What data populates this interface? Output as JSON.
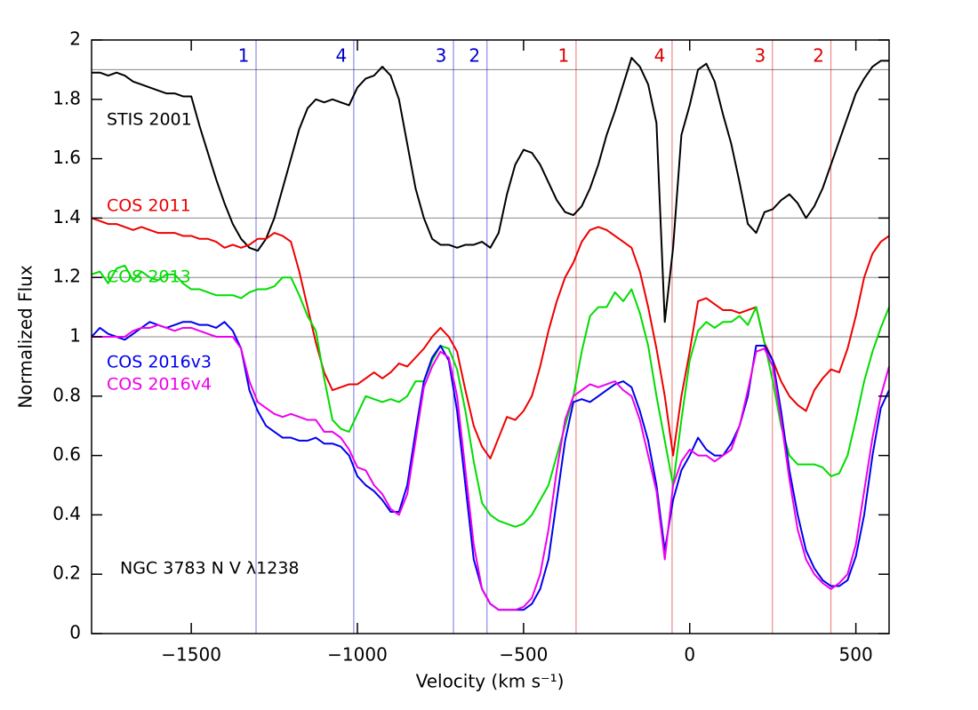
{
  "chart_data": {
    "type": "line",
    "annotation": "NGC 3783 N V λ1238",
    "xlabel": "Velocity (km s⁻¹)",
    "ylabel": "Normalized Flux",
    "xlim": [
      -1800,
      600
    ],
    "ylim": [
      0,
      2
    ],
    "xticks": [
      {
        "value": -1500,
        "label": "−1500"
      },
      {
        "value": -1000,
        "label": "−1000"
      },
      {
        "value": -500,
        "label": "−500"
      },
      0,
      500
    ],
    "yticks": [
      0,
      0.2,
      0.4,
      0.6,
      0.8,
      1,
      1.2,
      1.4,
      1.6,
      1.8,
      2
    ],
    "hlines": [
      1.9,
      1.4,
      1.2,
      1.0
    ],
    "components": [
      {
        "label": "1",
        "velocity": -1305,
        "color": "#0000cc"
      },
      {
        "label": "4",
        "velocity": -1011,
        "color": "#0000cc"
      },
      {
        "label": "3",
        "velocity": -711,
        "color": "#0000cc"
      },
      {
        "label": "2",
        "velocity": -610,
        "color": "#0000cc"
      },
      {
        "label": "1",
        "velocity": -342,
        "color": "#dd0000"
      },
      {
        "label": "4",
        "velocity": -53,
        "color": "#dd0000"
      },
      {
        "label": "3",
        "velocity": 249,
        "color": "#dd0000"
      },
      {
        "label": "2",
        "velocity": 425,
        "color": "#dd0000"
      }
    ],
    "x": [
      -1800,
      -1775,
      -1750,
      -1725,
      -1700,
      -1675,
      -1650,
      -1625,
      -1600,
      -1575,
      -1550,
      -1525,
      -1500,
      -1475,
      -1450,
      -1425,
      -1400,
      -1375,
      -1350,
      -1325,
      -1300,
      -1275,
      -1250,
      -1225,
      -1200,
      -1175,
      -1150,
      -1125,
      -1100,
      -1075,
      -1050,
      -1025,
      -1000,
      -975,
      -950,
      -925,
      -900,
      -875,
      -850,
      -825,
      -800,
      -775,
      -750,
      -725,
      -700,
      -675,
      -650,
      -625,
      -600,
      -575,
      -550,
      -525,
      -500,
      -475,
      -450,
      -425,
      -400,
      -375,
      -350,
      -325,
      -300,
      -275,
      -250,
      -225,
      -200,
      -175,
      -150,
      -125,
      -100,
      -75,
      -50,
      -25,
      0,
      25,
      50,
      75,
      100,
      125,
      150,
      175,
      200,
      225,
      250,
      275,
      300,
      325,
      350,
      375,
      400,
      425,
      450,
      475,
      500,
      525,
      550,
      575,
      600
    ],
    "series": [
      {
        "name": "STIS 2001",
        "color": "#000000",
        "values": [
          1.89,
          1.89,
          1.88,
          1.89,
          1.88,
          1.86,
          1.85,
          1.84,
          1.83,
          1.82,
          1.82,
          1.81,
          1.81,
          1.71,
          1.62,
          1.53,
          1.45,
          1.38,
          1.33,
          1.3,
          1.29,
          1.33,
          1.4,
          1.5,
          1.6,
          1.7,
          1.77,
          1.8,
          1.79,
          1.8,
          1.79,
          1.78,
          1.84,
          1.87,
          1.88,
          1.91,
          1.88,
          1.8,
          1.65,
          1.5,
          1.4,
          1.33,
          1.31,
          1.31,
          1.3,
          1.31,
          1.31,
          1.32,
          1.3,
          1.35,
          1.48,
          1.58,
          1.63,
          1.62,
          1.58,
          1.52,
          1.46,
          1.42,
          1.41,
          1.44,
          1.5,
          1.58,
          1.68,
          1.76,
          1.85,
          1.94,
          1.91,
          1.85,
          1.72,
          1.05,
          1.3,
          1.68,
          1.78,
          1.9,
          1.92,
          1.86,
          1.75,
          1.65,
          1.52,
          1.38,
          1.35,
          1.42,
          1.43,
          1.46,
          1.48,
          1.45,
          1.4,
          1.44,
          1.5,
          1.58,
          1.66,
          1.74,
          1.82,
          1.87,
          1.91,
          1.93,
          1.93
        ]
      },
      {
        "name": "COS 2011",
        "color": "#ee0000",
        "values": [
          1.4,
          1.39,
          1.38,
          1.38,
          1.37,
          1.36,
          1.37,
          1.36,
          1.35,
          1.35,
          1.35,
          1.34,
          1.34,
          1.33,
          1.33,
          1.32,
          1.3,
          1.31,
          1.3,
          1.31,
          1.33,
          1.33,
          1.35,
          1.34,
          1.32,
          1.22,
          1.1,
          0.98,
          0.88,
          0.82,
          0.83,
          0.84,
          0.84,
          0.86,
          0.88,
          0.86,
          0.88,
          0.91,
          0.9,
          0.93,
          0.96,
          1.0,
          1.03,
          1.0,
          0.95,
          0.82,
          0.7,
          0.63,
          0.59,
          0.66,
          0.73,
          0.72,
          0.75,
          0.8,
          0.9,
          1.02,
          1.12,
          1.2,
          1.25,
          1.32,
          1.36,
          1.37,
          1.36,
          1.34,
          1.32,
          1.3,
          1.22,
          1.1,
          0.96,
          0.8,
          0.6,
          0.8,
          0.95,
          1.12,
          1.13,
          1.11,
          1.09,
          1.09,
          1.08,
          1.09,
          1.1,
          0.98,
          0.92,
          0.85,
          0.8,
          0.77,
          0.75,
          0.82,
          0.86,
          0.89,
          0.88,
          0.96,
          1.07,
          1.2,
          1.28,
          1.32,
          1.34
        ]
      },
      {
        "name": "COS 2013",
        "color": "#00dd00",
        "values": [
          1.21,
          1.22,
          1.18,
          1.23,
          1.24,
          1.19,
          1.22,
          1.2,
          1.19,
          1.21,
          1.21,
          1.18,
          1.16,
          1.16,
          1.15,
          1.14,
          1.14,
          1.14,
          1.13,
          1.15,
          1.16,
          1.16,
          1.17,
          1.2,
          1.2,
          1.14,
          1.07,
          1.02,
          0.86,
          0.72,
          0.69,
          0.68,
          0.74,
          0.8,
          0.79,
          0.78,
          0.79,
          0.78,
          0.8,
          0.85,
          0.85,
          0.92,
          0.97,
          0.96,
          0.89,
          0.75,
          0.58,
          0.44,
          0.4,
          0.38,
          0.37,
          0.36,
          0.37,
          0.4,
          0.45,
          0.5,
          0.6,
          0.7,
          0.8,
          0.95,
          1.07,
          1.1,
          1.1,
          1.15,
          1.12,
          1.16,
          1.08,
          0.97,
          0.8,
          0.65,
          0.5,
          0.72,
          0.92,
          1.02,
          1.05,
          1.03,
          1.05,
          1.05,
          1.07,
          1.04,
          1.1,
          0.98,
          0.85,
          0.7,
          0.6,
          0.57,
          0.57,
          0.57,
          0.56,
          0.53,
          0.54,
          0.6,
          0.72,
          0.85,
          0.95,
          1.03,
          1.1
        ]
      },
      {
        "name": "COS 2016v3",
        "color": "#0000ee",
        "values": [
          1.0,
          1.03,
          1.01,
          1.0,
          0.99,
          1.01,
          1.03,
          1.05,
          1.04,
          1.03,
          1.04,
          1.05,
          1.05,
          1.04,
          1.04,
          1.03,
          1.05,
          1.02,
          0.96,
          0.82,
          0.75,
          0.7,
          0.68,
          0.66,
          0.66,
          0.65,
          0.65,
          0.66,
          0.64,
          0.64,
          0.63,
          0.6,
          0.53,
          0.5,
          0.48,
          0.45,
          0.41,
          0.41,
          0.5,
          0.68,
          0.85,
          0.93,
          0.97,
          0.92,
          0.75,
          0.5,
          0.25,
          0.15,
          0.1,
          0.08,
          0.08,
          0.08,
          0.08,
          0.1,
          0.15,
          0.25,
          0.45,
          0.65,
          0.78,
          0.79,
          0.78,
          0.8,
          0.82,
          0.84,
          0.85,
          0.83,
          0.75,
          0.65,
          0.5,
          0.28,
          0.45,
          0.55,
          0.6,
          0.66,
          0.62,
          0.6,
          0.6,
          0.64,
          0.7,
          0.8,
          0.97,
          0.97,
          0.92,
          0.75,
          0.55,
          0.4,
          0.28,
          0.22,
          0.18,
          0.16,
          0.16,
          0.18,
          0.26,
          0.4,
          0.6,
          0.76,
          0.82
        ]
      },
      {
        "name": "COS 2016v4",
        "color": "#ee00ee",
        "values": [
          1.0,
          1.0,
          1.0,
          1.0,
          1.0,
          1.02,
          1.03,
          1.03,
          1.04,
          1.03,
          1.02,
          1.03,
          1.03,
          1.02,
          1.01,
          1.0,
          1.0,
          1.0,
          0.96,
          0.85,
          0.78,
          0.76,
          0.74,
          0.73,
          0.74,
          0.73,
          0.72,
          0.72,
          0.68,
          0.68,
          0.66,
          0.62,
          0.56,
          0.55,
          0.5,
          0.47,
          0.42,
          0.4,
          0.47,
          0.65,
          0.83,
          0.9,
          0.95,
          0.93,
          0.8,
          0.55,
          0.3,
          0.15,
          0.1,
          0.08,
          0.08,
          0.08,
          0.09,
          0.12,
          0.2,
          0.35,
          0.55,
          0.72,
          0.8,
          0.82,
          0.84,
          0.83,
          0.84,
          0.85,
          0.82,
          0.8,
          0.72,
          0.6,
          0.48,
          0.25,
          0.5,
          0.58,
          0.62,
          0.6,
          0.6,
          0.58,
          0.6,
          0.62,
          0.7,
          0.82,
          0.95,
          0.96,
          0.9,
          0.72,
          0.52,
          0.35,
          0.25,
          0.2,
          0.17,
          0.15,
          0.17,
          0.2,
          0.3,
          0.48,
          0.66,
          0.8,
          0.9
        ]
      }
    ]
  }
}
